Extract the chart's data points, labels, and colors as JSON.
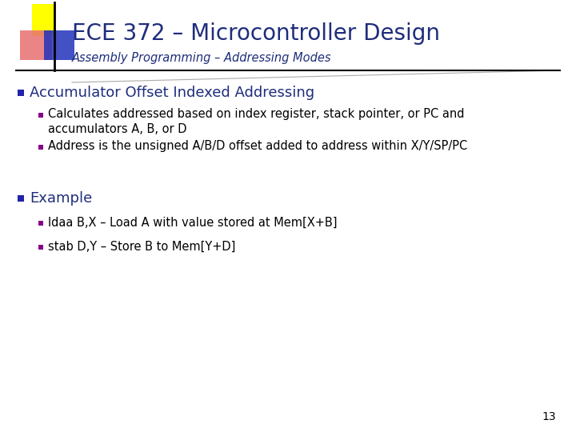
{
  "title": "ECE 372 – Microcontroller Design",
  "subtitle": "Assembly Programming – Addressing Modes",
  "title_color": "#1f2d7b",
  "subtitle_color": "#1f2d7b",
  "bg_color": "#ffffff",
  "bullet1_text": "Accumulator Offset Indexed Addressing",
  "bullet1_color": "#1f2d7b",
  "sub_bullet1a_line1": "Calculates addressed based on index register, stack pointer, or PC and",
  "sub_bullet1a_line2": "accumulators A, B, or D",
  "sub_bullet1b": "Address is the unsigned A/B/D offset added to address within X/Y/SP/PC",
  "bullet2_text": "Example",
  "bullet2_color": "#1f2d7b",
  "sub_bullet2a": "ldaa B,X – Load A with value stored at Mem[X+B]",
  "sub_bullet2b": "stab D,Y – Store B to Mem[Y+D]",
  "sub_bullet_color": "#000000",
  "bullet_marker_color": "#2222aa",
  "sub_marker_color": "#880088",
  "page_number": "13",
  "yellow": "#ffff00",
  "pink": "#e87070",
  "blue_block": "#2233bb",
  "black": "#000000",
  "gray_line": "#aaaaaa"
}
